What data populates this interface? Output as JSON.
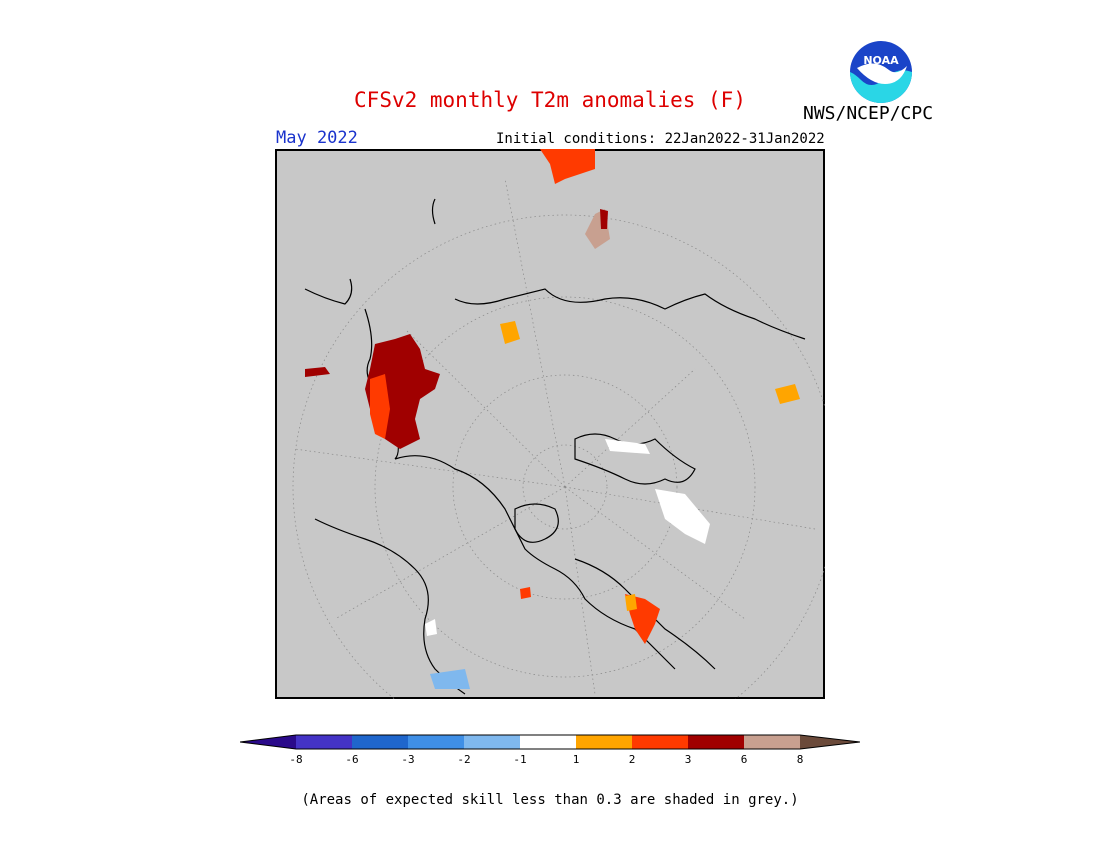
{
  "header": {
    "title": "CFSv2 monthly T2m anomalies (F)",
    "month": "May 2022",
    "initial_conditions": "Initial conditions: 22Jan2022-31Jan2022",
    "agency": "NWS/NCEP/CPC",
    "logo_text": "NOAA"
  },
  "colorbar": {
    "tick_labels": [
      "-8",
      "-6",
      "-3",
      "-2",
      "-1",
      "1",
      "2",
      "3",
      "6",
      "8"
    ],
    "colors": [
      "#2a0a8a",
      "#4433c6",
      "#1f66cc",
      "#3f8fe6",
      "#7fb8ee",
      "#ffffff",
      "#ffa500",
      "#ff3a00",
      "#a00000",
      "#c8a090",
      "#6b4a3a"
    ]
  },
  "footnote": "(Areas of expected skill less than 0.3 are shaded in grey.)",
  "map": {
    "projection": "north-polar-stereographic",
    "background_color": "#c8c8c8",
    "notable_anomalies": [
      {
        "region": "eastern-europe-western-russia",
        "category": "3 to 6+",
        "color": "#a00000"
      },
      {
        "region": "northern-africa",
        "category": "2 to 3",
        "color": "#ff3a00"
      },
      {
        "region": "northern-south-america",
        "category": "2 to 3",
        "color": "#ff3a00"
      },
      {
        "region": "greenland",
        "category": "-1 to 1",
        "color": "#ffffff"
      },
      {
        "region": "japan",
        "category": "1 to 2",
        "color": "#ffa500"
      },
      {
        "region": "south-china-sea",
        "category": "6 to 8",
        "color": "#c8a090"
      },
      {
        "region": "california",
        "category": "-2 to -1",
        "color": "#7fb8ee"
      }
    ]
  }
}
